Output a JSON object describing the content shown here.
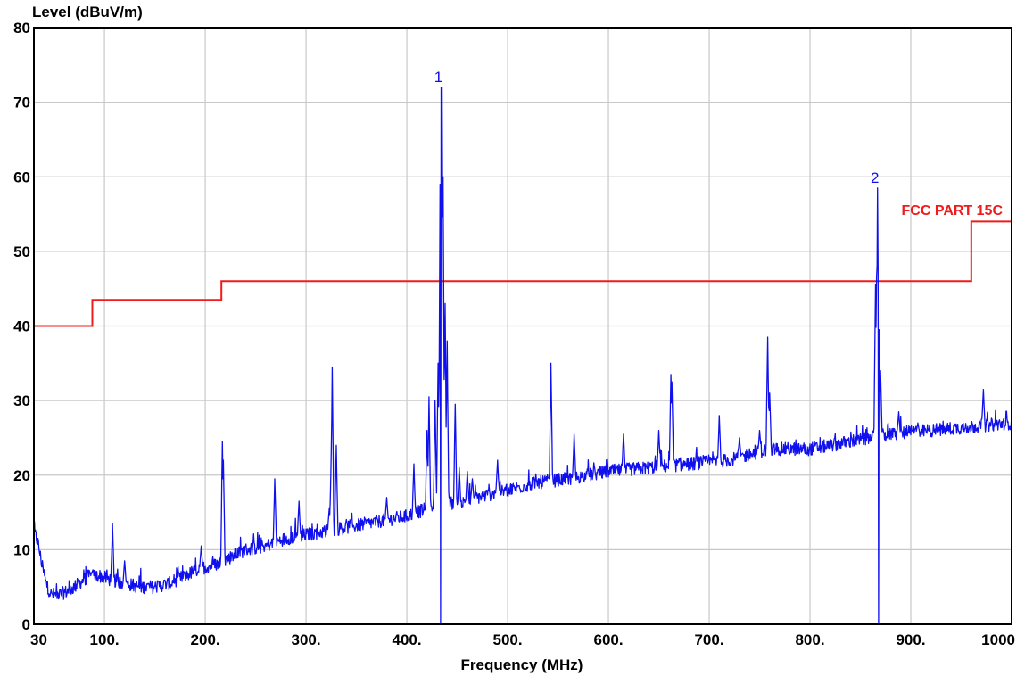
{
  "chart_data": {
    "type": "line",
    "ylabel": "Level (dBuV/m)",
    "xlabel": "Frequency (MHz)",
    "xlim": [
      30,
      1000
    ],
    "ylim": [
      0,
      80
    ],
    "grid": true,
    "x_ticks": [
      30,
      100,
      200,
      300,
      400,
      500,
      600,
      700,
      800,
      900,
      1000
    ],
    "x_tick_labels": [
      "30",
      "100.",
      "200.",
      "300.",
      "400.",
      "500.",
      "600.",
      "700.",
      "800.",
      "900.",
      "1000"
    ],
    "y_ticks": [
      0,
      10,
      20,
      30,
      40,
      50,
      60,
      70,
      80
    ],
    "y_tick_labels": [
      "0",
      "10",
      "20",
      "30",
      "40",
      "50",
      "60",
      "70",
      "80"
    ],
    "colors": {
      "trace": "#1010ee",
      "limit": "#ee1c1c",
      "grid": "#c8c8c8",
      "frame": "#000000"
    },
    "series": [
      {
        "role": "measurement",
        "baseline": [
          [
            30,
            12.5
          ],
          [
            34,
            11
          ],
          [
            38,
            8
          ],
          [
            42,
            5.5
          ],
          [
            47,
            4
          ],
          [
            55,
            4
          ],
          [
            65,
            4.5
          ],
          [
            75,
            5.5
          ],
          [
            85,
            6.5
          ],
          [
            95,
            6.5
          ],
          [
            105,
            6
          ],
          [
            120,
            5.5
          ],
          [
            135,
            5
          ],
          [
            150,
            5
          ],
          [
            165,
            5.5
          ],
          [
            180,
            6.5
          ],
          [
            195,
            7.5
          ],
          [
            210,
            8
          ],
          [
            225,
            9
          ],
          [
            240,
            10
          ],
          [
            260,
            10.5
          ],
          [
            280,
            11.5
          ],
          [
            300,
            12
          ],
          [
            320,
            12.5
          ],
          [
            340,
            13
          ],
          [
            360,
            13.5
          ],
          [
            380,
            14
          ],
          [
            400,
            14.5
          ],
          [
            420,
            15.5
          ],
          [
            430,
            16.5
          ],
          [
            440,
            16.5
          ],
          [
            450,
            16
          ],
          [
            470,
            17
          ],
          [
            500,
            18
          ],
          [
            530,
            19
          ],
          [
            560,
            19.5
          ],
          [
            600,
            20.5
          ],
          [
            640,
            21
          ],
          [
            680,
            21.5
          ],
          [
            720,
            22
          ],
          [
            760,
            23.5
          ],
          [
            800,
            23.5
          ],
          [
            840,
            24.5
          ],
          [
            880,
            25.5
          ],
          [
            920,
            26
          ],
          [
            960,
            26.5
          ],
          [
            1000,
            27
          ]
        ],
        "peaks": [
          [
            88,
            7
          ],
          [
            108,
            13.5
          ],
          [
            120,
            8.5
          ],
          [
            196,
            10.5
          ],
          [
            217,
            24.5
          ],
          [
            218,
            22
          ],
          [
            269,
            19.5
          ],
          [
            293,
            16.5
          ],
          [
            323,
            15.5
          ],
          [
            325,
            23
          ],
          [
            326,
            34.5
          ],
          [
            330,
            24
          ],
          [
            380,
            17
          ],
          [
            407,
            21.5
          ],
          [
            420,
            26
          ],
          [
            422,
            30.5
          ],
          [
            428,
            30
          ],
          [
            431,
            35
          ],
          [
            433,
            59
          ],
          [
            434,
            72
          ],
          [
            435,
            72
          ],
          [
            436,
            60
          ],
          [
            438,
            43
          ],
          [
            440,
            38
          ],
          [
            448,
            29.5
          ],
          [
            452,
            21
          ],
          [
            460,
            20.5
          ],
          [
            465,
            19.5
          ],
          [
            490,
            22
          ],
          [
            543,
            35
          ],
          [
            566,
            25.5
          ],
          [
            615,
            25.5
          ],
          [
            650,
            26
          ],
          [
            662,
            33.5
          ],
          [
            663,
            32.5
          ],
          [
            710,
            28
          ],
          [
            730,
            25
          ],
          [
            750,
            26
          ],
          [
            758,
            38.5
          ],
          [
            760,
            31
          ],
          [
            865,
            45.5
          ],
          [
            866,
            46.5
          ],
          [
            867,
            58.5
          ],
          [
            868,
            46
          ],
          [
            870,
            34
          ],
          [
            888,
            28.5
          ],
          [
            907,
            27
          ],
          [
            972,
            31.5
          ]
        ],
        "dips": [
          433.5,
          868
        ]
      },
      {
        "role": "limit",
        "name": "FCC PART 15C",
        "steps": [
          [
            30,
            40
          ],
          [
            88,
            40
          ],
          [
            88,
            43.5
          ],
          [
            216,
            43.5
          ],
          [
            216,
            46
          ],
          [
            960,
            46
          ],
          [
            960,
            54
          ],
          [
            1000,
            54
          ]
        ]
      }
    ],
    "markers": [
      {
        "label": "1",
        "x": 434,
        "y": 72
      },
      {
        "label": "2",
        "x": 867,
        "y": 58.5
      }
    ]
  }
}
